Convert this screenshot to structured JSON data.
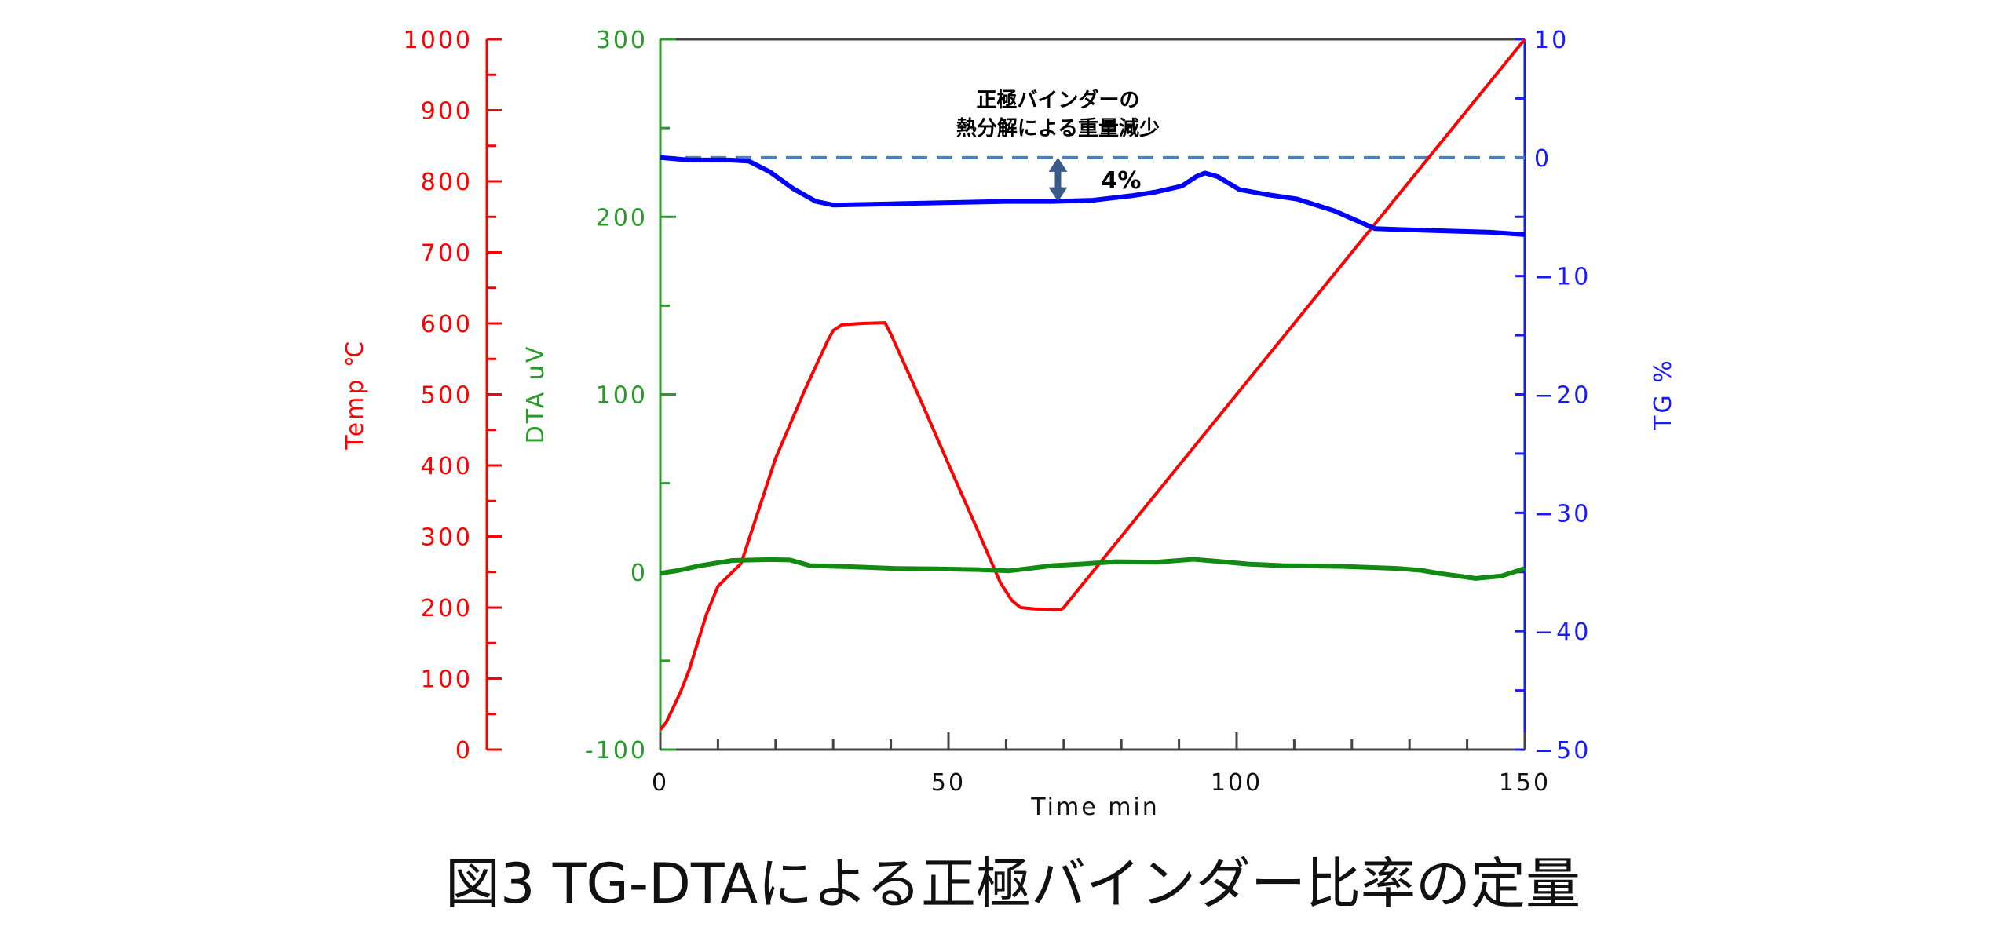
{
  "chart_data": {
    "type": "line",
    "title": "図3 TG-DTAによる正極バインダー比率の定量",
    "xlabel": "Time min",
    "xlim": [
      0,
      150
    ],
    "xticks": [
      0,
      50,
      100,
      150
    ],
    "axes": {
      "temp": {
        "label": "Temp ℃",
        "ylim": [
          0,
          1000
        ],
        "ticks": [
          0,
          100,
          200,
          300,
          400,
          500,
          600,
          700,
          800,
          900,
          1000
        ],
        "color": "#ff0000"
      },
      "dta": {
        "label": "DTA uV",
        "ylim": [
          -100,
          300
        ],
        "ticks": [
          -100,
          0,
          100,
          200,
          300
        ],
        "color": "#2a9a2a"
      },
      "tg": {
        "label": "TG %",
        "ylim": [
          -50,
          10
        ],
        "ticks": [
          -50,
          -40,
          -30,
          -20,
          -10,
          0,
          10
        ],
        "color": "#1a1aff"
      }
    },
    "series": [
      {
        "name": "Temp",
        "axis": "temp",
        "color": "#ff0000",
        "x": [
          0,
          1,
          2,
          3.5,
          5,
          8,
          10,
          14,
          20,
          25,
          29,
          30,
          31.5,
          35,
          39,
          40,
          45,
          50,
          55,
          59,
          61,
          62.5,
          65,
          69.5,
          70,
          80,
          90,
          100,
          110,
          120,
          130,
          140,
          150
        ],
        "y": [
          28,
          38,
          55,
          81,
          112,
          190,
          230,
          262,
          410,
          505,
          575,
          590,
          598,
          600,
          601,
          585,
          495,
          402,
          310,
          235,
          210,
          200,
          198,
          197,
          200,
          300,
          400,
          500,
          600,
          700,
          800,
          900,
          1000
        ]
      },
      {
        "name": "DTA",
        "axis": "dta",
        "color": "#138a13",
        "x": [
          0,
          3,
          7,
          12.5,
          19,
          22.5,
          26,
          33,
          41,
          48,
          55,
          60.5,
          64,
          68,
          73,
          79,
          86,
          92.5,
          97,
          102,
          108,
          118,
          128,
          132,
          135,
          141.5,
          146,
          150
        ],
        "y": [
          -0.7,
          0.8,
          3.6,
          6.5,
          7,
          6.8,
          3.6,
          3,
          2,
          1.8,
          1.4,
          0.7,
          2,
          3.6,
          4.5,
          5.8,
          5.5,
          7.2,
          6,
          4.5,
          3.6,
          3.2,
          2,
          1,
          -0.7,
          -3.6,
          -2.2,
          2
        ]
      },
      {
        "name": "TG",
        "axis": "tg",
        "color": "#0000ff",
        "x": [
          0,
          5,
          12,
          15.4,
          19,
          23,
          27,
          30,
          40,
          50,
          60,
          68,
          75,
          82,
          86,
          90.5,
          93,
          94.5,
          96.7,
          100.5,
          105,
          110.5,
          117,
          124,
          130,
          137,
          144,
          150
        ],
        "y": [
          0,
          -0.2,
          -0.2,
          -0.3,
          -1.2,
          -2.6,
          -3.7,
          -4,
          -3.9,
          -3.8,
          -3.7,
          -3.7,
          -3.6,
          -3.2,
          -2.9,
          -2.4,
          -1.6,
          -1.3,
          -1.6,
          -2.7,
          -3.1,
          -3.5,
          -4.5,
          -6.0,
          -6.1,
          -6.2,
          -6.3,
          -6.5
        ]
      }
    ],
    "annotations": {
      "reference_line": {
        "axis": "tg",
        "value": 0,
        "style": "dashed",
        "color": "#4a7ec2"
      },
      "arrow": {
        "x": 69,
        "from": 0,
        "to": -3.7,
        "color": "#3a5a8a"
      },
      "arrow_label": "4%",
      "note_line1": "正極バインダーの",
      "note_line2": "熱分解による重量減少"
    },
    "grid": false
  }
}
